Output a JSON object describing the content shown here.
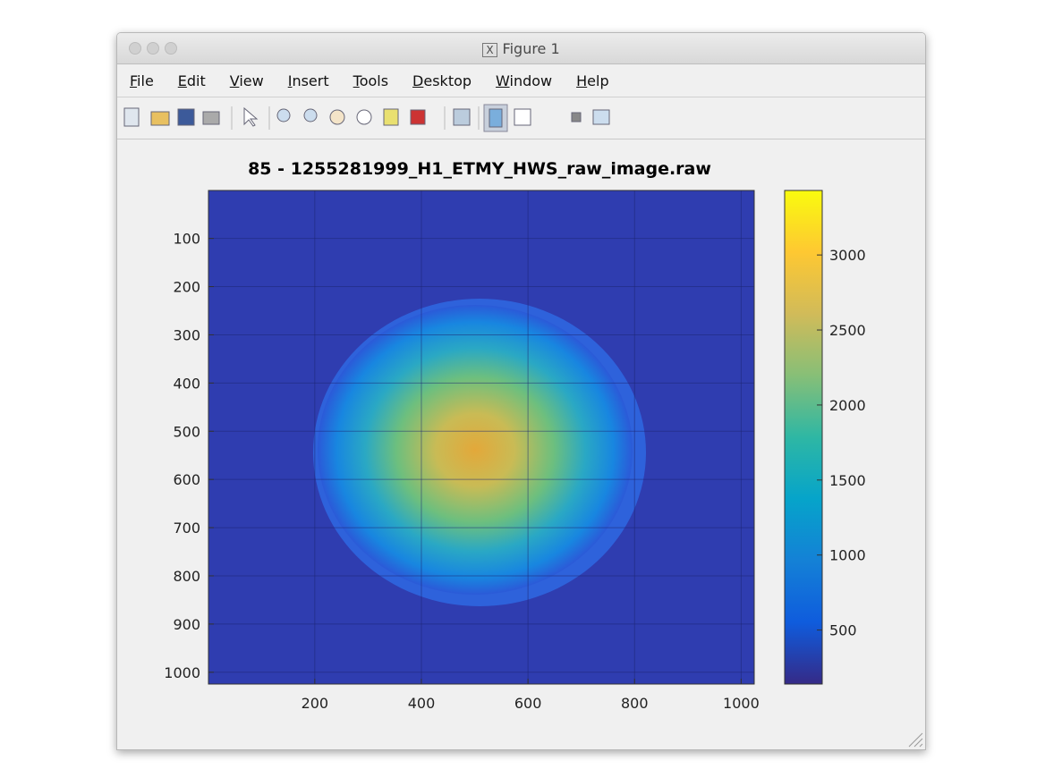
{
  "window": {
    "title": "Figure 1",
    "menu": [
      "File",
      "Edit",
      "View",
      "Insert",
      "Tools",
      "Desktop",
      "Window",
      "Help"
    ]
  },
  "chart_data": {
    "type": "image",
    "title": "85 - 1255281999_H1_ETMY_HWS_raw_image.raw",
    "xlim": [
      0.5,
      1024.5
    ],
    "ylim": [
      0.5,
      1024.5
    ],
    "y_reversed": true,
    "xticks": [
      200,
      400,
      600,
      800,
      1000
    ],
    "yticks": [
      100,
      200,
      300,
      400,
      500,
      600,
      700,
      800,
      900,
      1000
    ],
    "grid": true,
    "colorbar": {
      "clim": [
        140,
        3430
      ],
      "ticks": [
        500,
        1000,
        1500,
        2000,
        2500,
        3000
      ],
      "colormap": "parula"
    }
  }
}
